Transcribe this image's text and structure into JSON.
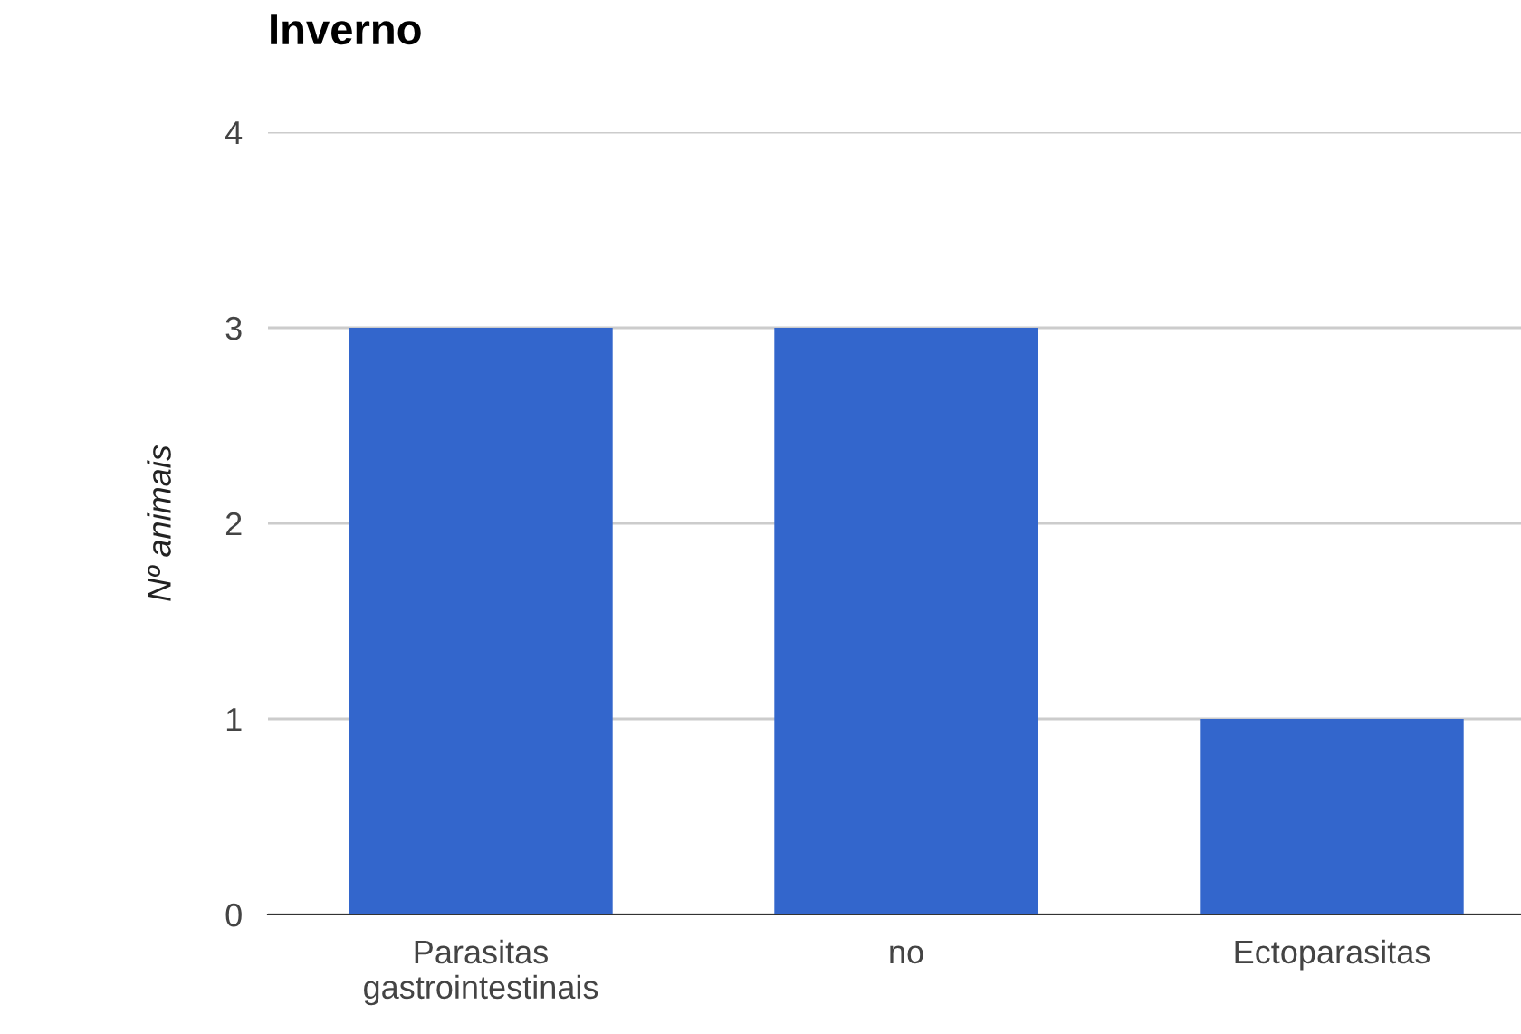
{
  "chart_data": {
    "type": "bar",
    "title": "Inverno",
    "ylabel": "Nº animais",
    "categories": [
      "Parasitas\ngastrointestinais",
      "no",
      "Ectoparasitas"
    ],
    "values": [
      3,
      3,
      1
    ],
    "color": "#3366cc",
    "ylim": [
      0,
      4
    ],
    "yticks": [
      0,
      1,
      2,
      3,
      4
    ],
    "grid": "y",
    "legend": false
  }
}
